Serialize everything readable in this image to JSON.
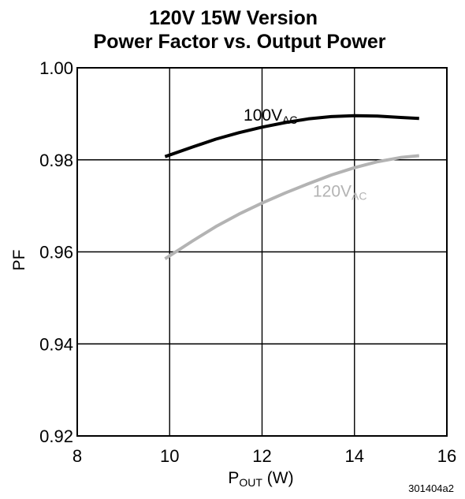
{
  "chart_data": {
    "type": "line",
    "title": "120V 15W Version",
    "subtitle": "Power Factor vs. Output Power",
    "xlabel": {
      "main": "P",
      "sub": "OUT",
      "suffix": " (W)"
    },
    "ylabel": "PF",
    "xlim": [
      8,
      16
    ],
    "ylim": [
      0.92,
      1.0
    ],
    "xticks": [
      8,
      10,
      12,
      14,
      16
    ],
    "xtick_labels": [
      "8",
      "10",
      "12",
      "14",
      "16"
    ],
    "yticks": [
      0.92,
      0.94,
      0.96,
      0.98,
      1.0
    ],
    "ytick_labels": [
      "0.92",
      "0.94",
      "0.96",
      "0.98",
      "1.00"
    ],
    "grid": true,
    "series": [
      {
        "label_main": "100V",
        "label_sub": "AC",
        "color": "#000000",
        "label_at": [
          11.6,
          0.9885
        ],
        "x": [
          9.9,
          10.5,
          11.0,
          11.5,
          12.0,
          12.5,
          13.0,
          13.5,
          14.0,
          14.5,
          15.0,
          15.4
        ],
        "y": [
          0.9807,
          0.9828,
          0.9845,
          0.9859,
          0.9871,
          0.9881,
          0.9889,
          0.9894,
          0.9896,
          0.9895,
          0.9892,
          0.989
        ]
      },
      {
        "label_main": "120V",
        "label_sub": "AC",
        "color": "#b3b3b3",
        "label_at": [
          13.1,
          0.972
        ],
        "x": [
          9.9,
          10.5,
          11.0,
          11.5,
          12.0,
          12.5,
          13.0,
          13.5,
          14.0,
          14.5,
          15.0,
          15.4
        ],
        "y": [
          0.9585,
          0.9624,
          0.9655,
          0.9682,
          0.9706,
          0.9728,
          0.9748,
          0.9767,
          0.9783,
          0.9796,
          0.9805,
          0.9809
        ]
      }
    ]
  },
  "figure_id": "301404a2"
}
